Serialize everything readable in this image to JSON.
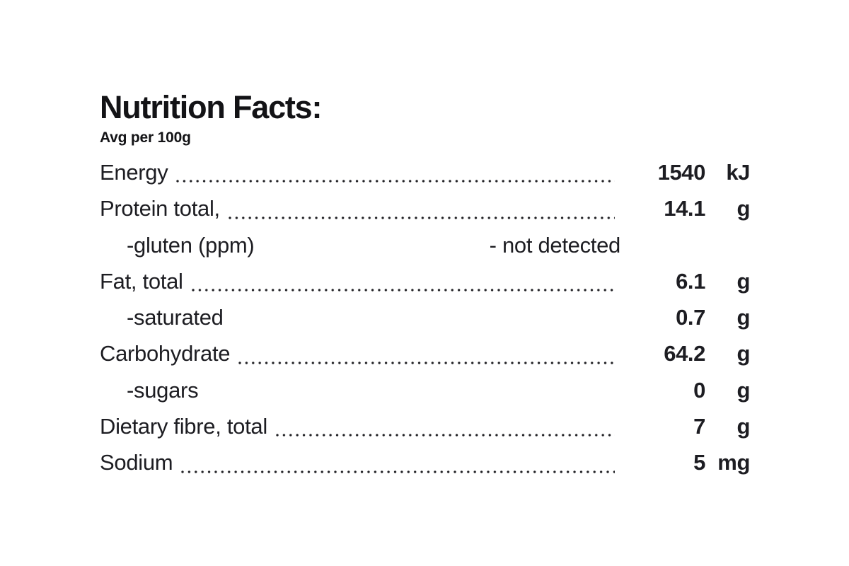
{
  "header": {
    "title": "Nutrition Facts:",
    "subtitle": "Avg per 100g"
  },
  "table": {
    "rows": [
      {
        "label": "Energy",
        "indent": false,
        "dots": true,
        "note": "",
        "value": "1540",
        "unit": "kJ"
      },
      {
        "label": "Protein total,",
        "indent": false,
        "dots": true,
        "note": "",
        "value": "14.1",
        "unit": "g"
      },
      {
        "label": "-gluten (ppm)",
        "indent": true,
        "dots": false,
        "note": "- not detected",
        "value": "",
        "unit": ""
      },
      {
        "label": "Fat, total",
        "indent": false,
        "dots": true,
        "note": "",
        "value": "6.1",
        "unit": "g"
      },
      {
        "label": "-saturated",
        "indent": true,
        "dots": false,
        "note": "",
        "value": "0.7",
        "unit": "g"
      },
      {
        "label": "Carbohydrate",
        "indent": false,
        "dots": true,
        "note": "",
        "value": "64.2",
        "unit": "g"
      },
      {
        "label": "-sugars",
        "indent": true,
        "dots": false,
        "note": "",
        "value": "0",
        "unit": "g"
      },
      {
        "label": "Dietary fibre, total",
        "indent": false,
        "dots": true,
        "note": "",
        "value": "7",
        "unit": "g"
      },
      {
        "label": "Sodium",
        "indent": false,
        "dots": true,
        "note": "",
        "value": "5",
        "unit": "mg"
      }
    ]
  },
  "colors": {
    "background": "#ffffff",
    "title_text": "#131316",
    "body_text": "#1d1d22",
    "dot_leader": "#222226"
  }
}
